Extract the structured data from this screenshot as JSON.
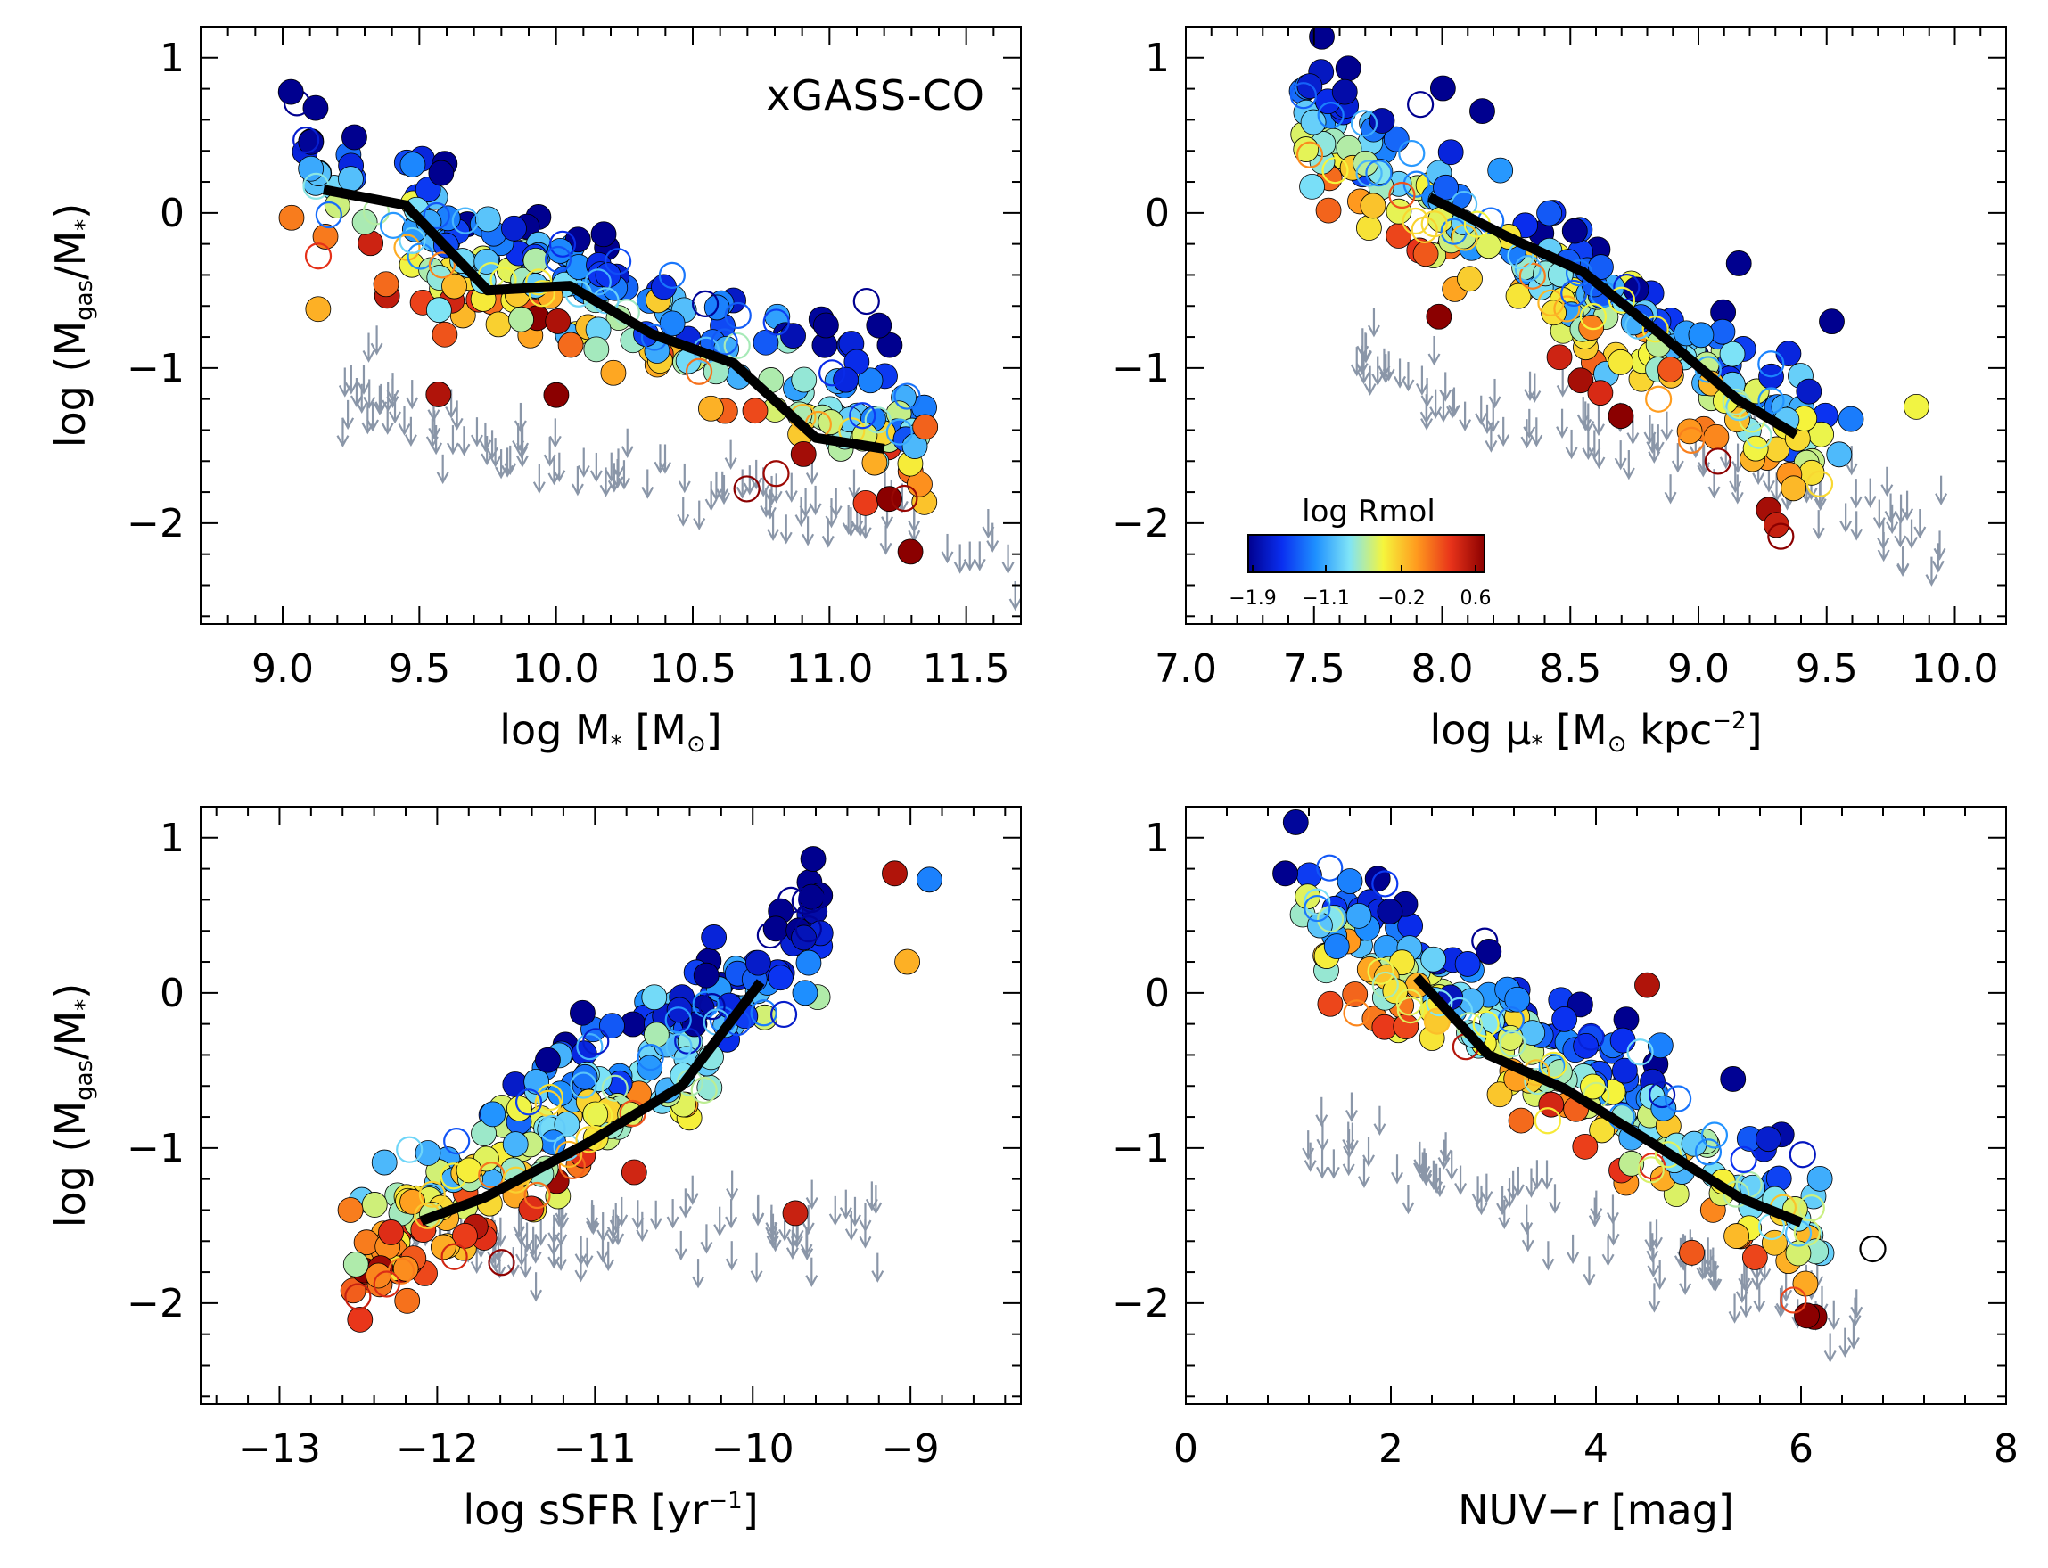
{
  "figure": {
    "dataset_label": "xGASS-CO",
    "colorbar": {
      "title": "log Rmol",
      "ticks": [
        "-1.9",
        "-1.1",
        "-0.2",
        "0.6"
      ],
      "range": [
        -2.0,
        0.65
      ],
      "colormap": [
        "#00008f",
        "#0a2ff0",
        "#1e90ff",
        "#7fe4f7",
        "#f5f53c",
        "#ff9a1e",
        "#e8331a",
        "#8b0000"
      ]
    },
    "ylabel": {
      "main": "log (M",
      "sub1": "gas",
      "mid": "/M",
      "sub2": "*",
      "end": ")"
    },
    "colors": {
      "upper_limit_arrow": "#8a96a8",
      "median_line": "#000000",
      "marker_edge": "#000000"
    }
  },
  "chart_data": [
    {
      "type": "scatter",
      "id": "panel-mass",
      "xlabel": {
        "main": "log M",
        "sub": "*",
        "end": " [M",
        "sun": "⊙",
        "close": "]"
      },
      "xlim": [
        8.7,
        11.7
      ],
      "ylim": [
        -2.65,
        1.2
      ],
      "xticks": [
        "9.0",
        "9.5",
        "10.0",
        "10.5",
        "11.0",
        "11.5"
      ],
      "xtick_values": [
        9.0,
        9.5,
        10.0,
        10.5,
        11.0,
        11.5
      ],
      "yticks": [
        "1",
        "0",
        "−1",
        "−2"
      ],
      "ytick_values": [
        1,
        0,
        -1,
        -2
      ],
      "median": {
        "x": [
          9.15,
          9.45,
          9.75,
          10.05,
          10.35,
          10.65,
          10.95,
          11.2
        ],
        "y": [
          0.15,
          0.05,
          -0.5,
          -0.47,
          -0.78,
          -0.97,
          -1.45,
          -1.52
        ]
      },
      "seed": 11,
      "trend": {
        "x0": 9.2,
        "y0": 0.1,
        "slope": -0.72,
        "xmin": 9.02,
        "xmax": 11.35,
        "scatter": 0.5
      },
      "n_detections": 220,
      "n_tentative": 45,
      "n_limits": 110,
      "limit_trend": {
        "slope": -0.42,
        "x0": 9.2,
        "y0": -1.15
      },
      "anchor_points": [
        {
          "x": 9.03,
          "y": 0.78,
          "c": -2.0
        },
        {
          "x": 9.13,
          "y": -0.62,
          "c": -0.2
        },
        {
          "x": 9.57,
          "y": -1.17,
          "c": 0.5
        },
        {
          "x": 11.35,
          "y": -1.38,
          "c": 0.1
        }
      ]
    },
    {
      "type": "scatter",
      "id": "panel-density",
      "xlabel": {
        "main": "log μ",
        "sub": "*",
        "end": " [M",
        "sun": "⊙",
        "close": " kpc",
        "sup": "−2",
        "close2": "]"
      },
      "xlim": [
        7.0,
        10.2
      ],
      "ylim": [
        -2.65,
        1.2
      ],
      "xticks": [
        "7.0",
        "7.5",
        "8.0",
        "8.5",
        "9.0",
        "9.5",
        "10.0"
      ],
      "xtick_values": [
        7.0,
        7.5,
        8.0,
        8.5,
        9.0,
        9.5,
        10.0
      ],
      "yticks": [
        "1",
        "0",
        "−1",
        "−2"
      ],
      "ytick_values": [
        1,
        0,
        -1,
        -2
      ],
      "median": {
        "x": [
          7.95,
          8.25,
          8.55,
          8.85,
          9.15,
          9.38
        ],
        "y": [
          0.1,
          -0.15,
          -0.38,
          -0.78,
          -1.2,
          -1.43
        ]
      },
      "seed": 23,
      "trend": {
        "x0": 7.9,
        "y0": 0.15,
        "slope": -1.05,
        "xmin": 7.45,
        "xmax": 9.6,
        "scatter": 0.45
      },
      "n_detections": 220,
      "n_tentative": 45,
      "n_limits": 100,
      "limit_trend": {
        "slope": -0.5,
        "x0": 8.1,
        "y0": -1.1
      },
      "anchor_points": [
        {
          "x": 7.62,
          "y": 0.78,
          "c": -1.9
        },
        {
          "x": 9.85,
          "y": -1.25,
          "c": -0.5
        },
        {
          "x": 9.52,
          "y": -0.7,
          "c": -2.0
        }
      ]
    },
    {
      "type": "scatter",
      "id": "panel-ssfr",
      "xlabel": {
        "main": "log sSFR [yr",
        "sup": "−1",
        "end": "]"
      },
      "xlim": [
        -13.5,
        -8.3
      ],
      "ylim": [
        -2.65,
        1.2
      ],
      "xticks": [
        "−13",
        "−12",
        "−11",
        "−10",
        "−9"
      ],
      "xtick_values": [
        -13,
        -12,
        -11,
        -10,
        -9
      ],
      "yticks": [
        "1",
        "0",
        "−1",
        "−2"
      ],
      "ytick_values": [
        1,
        0,
        -1,
        -2
      ],
      "median": {
        "x": [
          -12.1,
          -11.7,
          -11.05,
          -10.45,
          -9.95
        ],
        "y": [
          -1.47,
          -1.32,
          -0.97,
          -0.6,
          0.07
        ]
      },
      "seed": 37,
      "trend": {
        "x0": -12.1,
        "y0": -1.45,
        "slope": 0.72,
        "xmin": -12.55,
        "xmax": -9.55,
        "scatter": 0.42
      },
      "n_detections": 220,
      "n_tentative": 45,
      "n_limits": 100,
      "limit_trend": {
        "slope": 0.05,
        "x0": -12.2,
        "y0": -1.6
      },
      "anchor_points": [
        {
          "x": -9.1,
          "y": 0.77,
          "c": 0.5
        },
        {
          "x": -8.88,
          "y": 0.73,
          "c": -1.3
        },
        {
          "x": -9.73,
          "y": -1.42,
          "c": 0.4
        },
        {
          "x": -12.55,
          "y": -1.4,
          "c": 0.0
        },
        {
          "x": -9.02,
          "y": 0.2,
          "c": -0.2
        }
      ]
    },
    {
      "type": "scatter",
      "id": "panel-color",
      "xlabel": {
        "main": "NUV−r [mag]"
      },
      "xlim": [
        0,
        8
      ],
      "ylim": [
        -2.65,
        1.2
      ],
      "xticks": [
        "0",
        "2",
        "4",
        "6",
        "8"
      ],
      "xtick_values": [
        0,
        2,
        4,
        6,
        8
      ],
      "yticks": [
        "1",
        "0",
        "−1",
        "−2"
      ],
      "ytick_values": [
        1,
        0,
        -1,
        -2
      ],
      "median": {
        "x": [
          2.25,
          2.95,
          3.7,
          4.55,
          5.4,
          6.0
        ],
        "y": [
          0.1,
          -0.4,
          -0.62,
          -0.97,
          -1.32,
          -1.48
        ]
      },
      "seed": 53,
      "trend": {
        "x0": 1.2,
        "y0": 0.55,
        "slope": -0.42,
        "xmin": 1.0,
        "xmax": 6.2,
        "scatter": 0.42
      },
      "n_detections": 220,
      "n_tentative": 45,
      "n_limits": 95,
      "limit_trend": {
        "slope": -0.22,
        "x0": 4.3,
        "y0": -1.55
      },
      "anchor_points": [
        {
          "x": 0.97,
          "y": 0.77,
          "c": -2.0
        },
        {
          "x": 1.6,
          "y": 0.72,
          "c": -1.3
        },
        {
          "x": 6.7,
          "y": -1.65,
          "c": 99
        },
        {
          "x": 4.5,
          "y": 0.05,
          "c": 0.5
        }
      ]
    }
  ]
}
